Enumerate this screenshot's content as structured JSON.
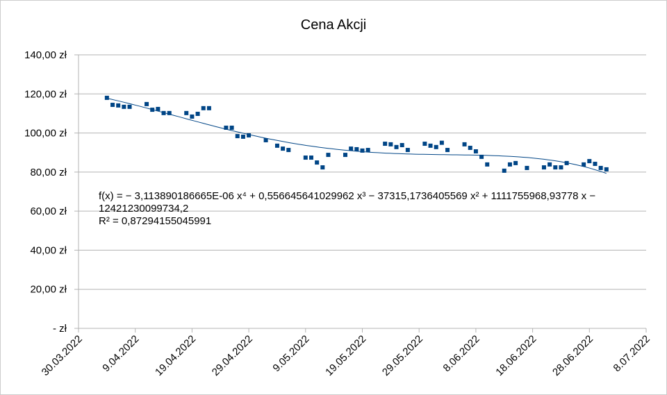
{
  "chart_data": {
    "type": "scatter",
    "title": "Cena Akcji",
    "x": [
      "2022-04-04",
      "2022-04-05",
      "2022-04-06",
      "2022-04-07",
      "2022-04-08",
      "2022-04-11",
      "2022-04-12",
      "2022-04-13",
      "2022-04-14",
      "2022-04-15",
      "2022-04-18",
      "2022-04-19",
      "2022-04-20",
      "2022-04-21",
      "2022-04-22",
      "2022-04-25",
      "2022-04-26",
      "2022-04-27",
      "2022-04-28",
      "2022-04-29",
      "2022-05-02",
      "2022-05-04",
      "2022-05-05",
      "2022-05-06",
      "2022-05-09",
      "2022-05-10",
      "2022-05-11",
      "2022-05-12",
      "2022-05-13",
      "2022-05-16",
      "2022-05-17",
      "2022-05-18",
      "2022-05-19",
      "2022-05-20",
      "2022-05-23",
      "2022-05-24",
      "2022-05-25",
      "2022-05-26",
      "2022-05-27",
      "2022-05-30",
      "2022-05-31",
      "2022-06-01",
      "2022-06-02",
      "2022-06-03",
      "2022-06-06",
      "2022-06-07",
      "2022-06-08",
      "2022-06-09",
      "2022-06-10",
      "2022-06-13",
      "2022-06-14",
      "2022-06-15",
      "2022-06-17",
      "2022-06-20",
      "2022-06-21",
      "2022-06-22",
      "2022-06-23",
      "2022-06-24",
      "2022-06-27",
      "2022-06-28",
      "2022-06-29",
      "2022-06-30",
      "2022-07-01"
    ],
    "series": [
      {
        "color": "#004586",
        "values": [
          118.0,
          114.4,
          114.1,
          113.4,
          113.4,
          114.8,
          111.9,
          112.3,
          110.2,
          110.2,
          110.2,
          108.4,
          109.8,
          112.7,
          112.7,
          102.7,
          102.7,
          98.4,
          98.1,
          98.8,
          96.3,
          93.5,
          92.0,
          91.3,
          87.4,
          87.4,
          84.9,
          82.4,
          88.8,
          88.8,
          92.0,
          91.7,
          91.0,
          91.3,
          94.5,
          94.2,
          92.8,
          93.8,
          91.3,
          94.5,
          93.5,
          92.8,
          95.0,
          91.3,
          94.2,
          92.4,
          90.6,
          87.8,
          83.9,
          80.7,
          83.9,
          84.6,
          82.1,
          82.4,
          83.9,
          82.4,
          82.4,
          84.6,
          83.9,
          85.6,
          84.2,
          82.1,
          81.4
        ]
      }
    ],
    "trendline": {
      "type": "polynomial",
      "degree": 4,
      "color": "#004586",
      "equation": "f(x) = − 3,113890186665E-06 x⁴ + 0,556645641029962 x³ − 37315,1736405569 x² + 1111755968,93778 x − 12421230099734,2",
      "r_squared": "R² = 0,87294155045991"
    },
    "xlim": [
      "2022-03-30",
      "2022-07-08"
    ],
    "xticks": [
      {
        "value": "2022-03-30",
        "label": "30.03.2022"
      },
      {
        "value": "2022-04-09",
        "label": "9.04.2022"
      },
      {
        "value": "2022-04-19",
        "label": "19.04.2022"
      },
      {
        "value": "2022-04-29",
        "label": "29.04.2022"
      },
      {
        "value": "2022-05-09",
        "label": "9.05.2022"
      },
      {
        "value": "2022-05-19",
        "label": "19.05.2022"
      },
      {
        "value": "2022-05-29",
        "label": "29.05.2022"
      },
      {
        "value": "2022-06-08",
        "label": "8.06.2022"
      },
      {
        "value": "2022-06-18",
        "label": "18.06.2022"
      },
      {
        "value": "2022-06-28",
        "label": "28.06.2022"
      },
      {
        "value": "2022-07-08",
        "label": "8.07.2022"
      }
    ],
    "ylim": [
      0,
      140
    ],
    "yticks": [
      {
        "value": 0,
        "label": "- zł"
      },
      {
        "value": 20,
        "label": "20,00 zł"
      },
      {
        "value": 40,
        "label": "40,00 zł"
      },
      {
        "value": 60,
        "label": "60,00 zł"
      },
      {
        "value": 80,
        "label": "80,00 zł"
      },
      {
        "value": 100,
        "label": "100,00 zł"
      },
      {
        "value": 120,
        "label": "120,00 zł"
      },
      {
        "value": 140,
        "label": "140,00 zł"
      }
    ],
    "grid": true
  }
}
